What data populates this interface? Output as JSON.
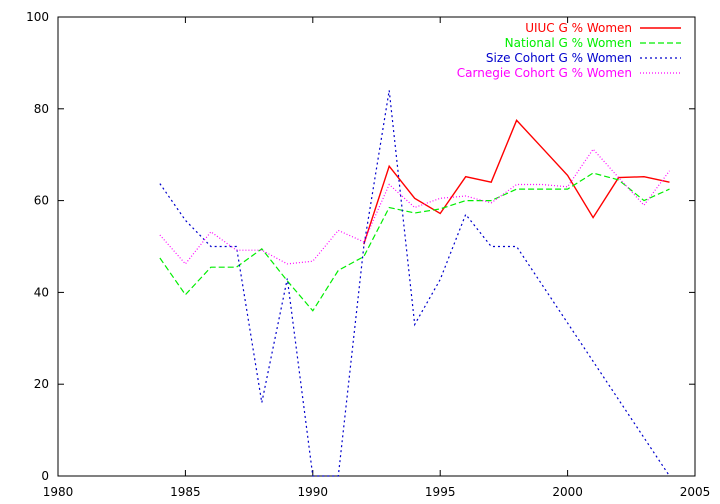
{
  "chart_data": {
    "type": "line",
    "title": "",
    "xlabel": "",
    "ylabel": "",
    "xlim": [
      1980,
      2005
    ],
    "ylim": [
      0,
      100
    ],
    "xticks": [
      1980,
      1985,
      1990,
      1995,
      2000,
      2005
    ],
    "yticks": [
      0,
      20,
      40,
      60,
      80,
      100
    ],
    "grid": false,
    "legend_position": "top-right",
    "series": [
      {
        "name": "UIUC G % Women",
        "color": "#ff0000",
        "dash": "solid",
        "x": [
          1992,
          1993,
          1994,
          1995,
          1996,
          1997,
          1998,
          1999,
          2000,
          2001,
          2002,
          2003,
          2004
        ],
        "y": [
          50.5,
          67.5,
          60.5,
          57.2,
          65.2,
          64.0,
          77.5,
          71.5,
          65.5,
          56.3,
          65.0,
          65.2,
          64.0
        ]
      },
      {
        "name": "National G % Women",
        "color": "#00ee00",
        "dash": "dashed",
        "x": [
          1984,
          1985,
          1986,
          1987,
          1988,
          1989,
          1990,
          1991,
          1992,
          1993,
          1994,
          1995,
          1996,
          1997,
          1998,
          1999,
          2000,
          2001,
          2002,
          2003,
          2004
        ],
        "y": [
          47.5,
          39.5,
          45.5,
          45.5,
          49.5,
          42.5,
          36.0,
          44.8,
          47.8,
          58.5,
          57.3,
          58.2,
          60.0,
          60.0,
          62.5,
          62.5,
          62.5,
          66.0,
          64.5,
          60.0,
          62.5
        ]
      },
      {
        "name": "Size Cohort G % Women",
        "color": "#0000cc",
        "dash": "dotted",
        "x": [
          1984,
          1985,
          1986,
          1987,
          1988,
          1989,
          1990,
          1991,
          1992,
          1993,
          1994,
          1995,
          1996,
          1997,
          1998,
          2004
        ],
        "y": [
          63.7,
          55.7,
          50.0,
          50.0,
          16.0,
          43.0,
          0.0,
          0.0,
          50.0,
          84.0,
          33.0,
          42.8,
          57.0,
          50.0,
          50.0,
          0.0
        ]
      },
      {
        "name": "Carnegie Cohort G % Women",
        "color": "#ff00ff",
        "dash": "finedot",
        "x": [
          1984,
          1985,
          1986,
          1987,
          1988,
          1989,
          1990,
          1991,
          1992,
          1993,
          1994,
          1995,
          1996,
          1997,
          1998,
          1999,
          2000,
          2001,
          2002,
          2003,
          2004
        ],
        "y": [
          52.5,
          46.2,
          53.2,
          49.2,
          49.2,
          46.2,
          46.8,
          53.5,
          51.0,
          63.5,
          58.5,
          60.5,
          61.0,
          59.5,
          63.5,
          63.5,
          63.0,
          71.2,
          65.0,
          59.0,
          66.5
        ]
      }
    ]
  }
}
